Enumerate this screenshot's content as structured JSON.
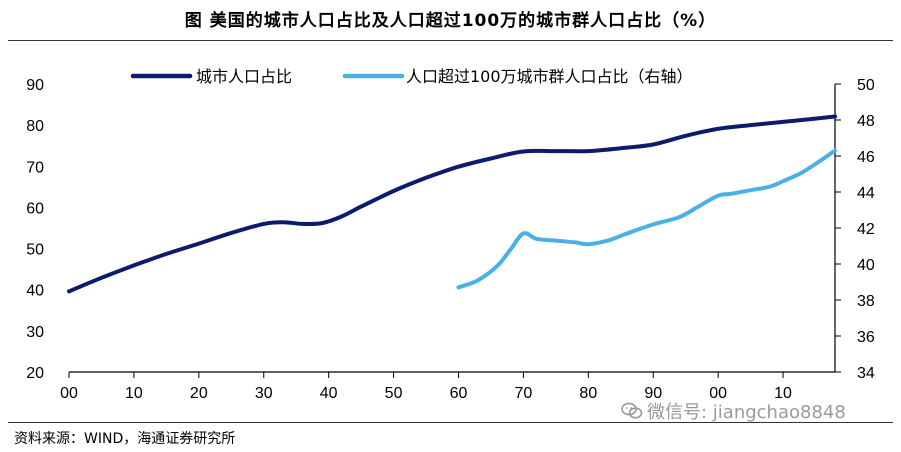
{
  "title": "图   美国的城市人口占比及人口超过100万的城市群人口占比（%）",
  "source": "资料来源：WIND，海通证券研究所",
  "watermark": "微信号: jiangchao8848",
  "watermark_icon": "wechat-icon",
  "colors": {
    "series1": "#0d1b6e",
    "series2": "#4bb0e6",
    "axis": "#000000",
    "rule": "#333333"
  },
  "chart_data": {
    "type": "line",
    "title": "美国的城市人口占比及人口超过100万的城市群人口占比（%）",
    "x_tick_labels": [
      "00",
      "10",
      "20",
      "30",
      "40",
      "50",
      "60",
      "70",
      "80",
      "90",
      "00",
      "10"
    ],
    "x_ticks": [
      1900,
      1910,
      1920,
      1930,
      1940,
      1950,
      1960,
      1970,
      1980,
      1990,
      2000,
      2010
    ],
    "xlim": [
      1900,
      2018
    ],
    "ylim": [
      20,
      90
    ],
    "y_ticks": [
      20,
      30,
      40,
      50,
      60,
      70,
      80,
      90
    ],
    "y2lim": [
      34,
      50
    ],
    "y2_ticks": [
      34,
      36,
      38,
      40,
      42,
      44,
      46,
      48,
      50
    ],
    "legend_position": "top",
    "grid": false,
    "series": [
      {
        "name": "城市人口占比",
        "axis": "left",
        "color": "#0d1b6e",
        "x": [
          1900,
          1905,
          1910,
          1915,
          1920,
          1925,
          1930,
          1933,
          1936,
          1939,
          1942,
          1945,
          1950,
          1955,
          1960,
          1965,
          1970,
          1975,
          1980,
          1985,
          1990,
          1995,
          2000,
          2005,
          2010,
          2015,
          2018
        ],
        "y": [
          39.6,
          42.9,
          45.9,
          48.7,
          51.2,
          53.8,
          56.0,
          56.4,
          56.0,
          56.2,
          57.8,
          60.2,
          64.0,
          67.2,
          69.9,
          71.9,
          73.6,
          73.7,
          73.7,
          74.4,
          75.3,
          77.4,
          79.1,
          80.0,
          80.8,
          81.6,
          82.1
        ]
      },
      {
        "name": "人口超过100万城市群人口占比（右轴）",
        "axis": "right",
        "color": "#4bb0e6",
        "x": [
          1960,
          1963,
          1966,
          1968,
          1970,
          1972,
          1975,
          1978,
          1980,
          1983,
          1986,
          1990,
          1994,
          1997,
          2000,
          2002,
          2005,
          2008,
          2010,
          2013,
          2016,
          2018
        ],
        "y": [
          38.7,
          39.1,
          39.9,
          40.8,
          41.7,
          41.4,
          41.3,
          41.2,
          41.1,
          41.3,
          41.7,
          42.2,
          42.6,
          43.2,
          43.8,
          43.9,
          44.1,
          44.3,
          44.6,
          45.1,
          45.8,
          46.3
        ]
      }
    ]
  }
}
